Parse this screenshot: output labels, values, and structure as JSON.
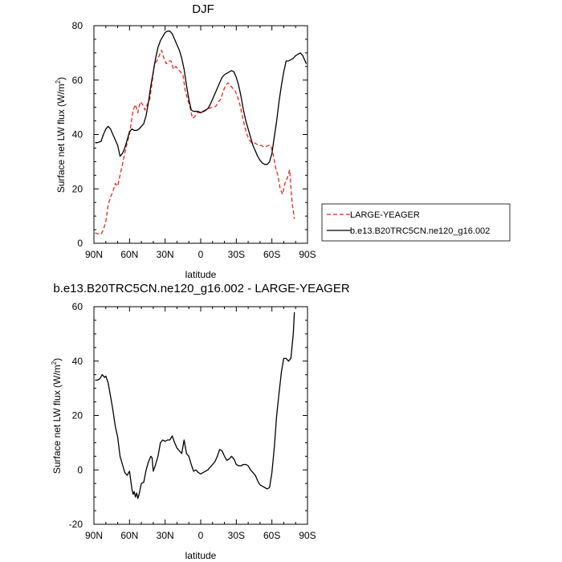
{
  "chart_data": [
    {
      "type": "line",
      "title": "DJF",
      "xlabel": "latitude",
      "ylabel": "Surface net LW flux (W/m",
      "ylabel_sup": "2",
      "ylabel_close": ")",
      "xlim": [
        90,
        -90
      ],
      "ylim": [
        0,
        80
      ],
      "x_ticks": [
        90,
        60,
        30,
        0,
        -30,
        -60,
        -90
      ],
      "x_tick_labels": [
        "90N",
        "60N",
        "30N",
        "0",
        "30S",
        "60S",
        "90S"
      ],
      "y_ticks": [
        0,
        20,
        40,
        60,
        80
      ],
      "y_tick_labels": [
        "0",
        "20",
        "40",
        "60",
        "80"
      ],
      "legend_position": "right",
      "series": [
        {
          "name": "LARGE-YEAGER",
          "color": "#e8241a",
          "style": "dashed",
          "x": [
            89,
            87,
            84,
            82,
            80,
            78,
            76,
            74,
            72,
            70,
            68,
            66,
            64,
            62,
            60,
            58,
            57,
            55,
            53,
            51,
            49,
            47,
            45,
            43,
            41,
            39,
            37,
            35,
            33,
            31,
            29,
            27,
            25,
            23,
            21,
            19,
            17,
            15,
            13,
            11,
            9,
            7,
            5,
            3,
            1,
            -1,
            -3,
            -5,
            -7,
            -9,
            -11,
            -13,
            -15,
            -17,
            -19,
            -21,
            -23,
            -25,
            -27,
            -29,
            -31,
            -33,
            -35,
            -37,
            -39,
            -41,
            -43,
            -45,
            -47,
            -49,
            -51,
            -53,
            -55,
            -57,
            -59,
            -61,
            -63,
            -65,
            -67,
            -69,
            -71,
            -73,
            -75,
            -77,
            -79
          ],
          "y": [
            3.8,
            3.5,
            3.3,
            5,
            8,
            14,
            17,
            19,
            22,
            21,
            25,
            29,
            33,
            37,
            40,
            46,
            49,
            51,
            48,
            52,
            51,
            49,
            51,
            53,
            59,
            66,
            67,
            69,
            71,
            68,
            66,
            67,
            67,
            64,
            65,
            64,
            63,
            62,
            56,
            53,
            50,
            46,
            46.5,
            48,
            48,
            48,
            48.5,
            49,
            49.5,
            50,
            50,
            50.5,
            52,
            53,
            56,
            58,
            59,
            58,
            57,
            56,
            54,
            51,
            47,
            43,
            40,
            38,
            37,
            37,
            36.5,
            36,
            36,
            35.5,
            35.5,
            36,
            36,
            33,
            28,
            25,
            20,
            18,
            22,
            24,
            27,
            15,
            9
          ]
        },
        {
          "name": "b.e13.B20TRC5CN.ne120_g16.002",
          "color": "#000000",
          "style": "solid",
          "x": [
            89,
            87,
            84,
            82,
            80,
            78,
            76,
            74,
            72,
            70,
            68,
            66,
            64,
            62,
            60,
            58,
            56,
            54,
            52,
            50,
            48,
            46,
            44,
            42,
            40,
            38,
            36,
            34,
            32,
            30,
            28,
            26,
            24,
            22,
            20,
            18,
            16,
            14,
            12,
            10,
            8,
            6,
            4,
            2,
            0,
            -2,
            -4,
            -6,
            -8,
            -10,
            -12,
            -14,
            -16,
            -18,
            -20,
            -22,
            -24,
            -26,
            -28,
            -30,
            -32,
            -34,
            -36,
            -38,
            -40,
            -42,
            -44,
            -46,
            -48,
            -50,
            -52,
            -54,
            -56,
            -58,
            -60,
            -62,
            -64,
            -66,
            -68,
            -70,
            -72,
            -74,
            -76,
            -78,
            -80,
            -82,
            -84,
            -86,
            -88,
            -89
          ],
          "y": [
            37,
            37,
            37.5,
            40,
            42,
            43,
            42,
            40,
            38,
            36,
            32,
            33,
            35,
            38,
            41,
            42,
            41.5,
            41.5,
            42,
            43,
            44,
            47,
            52,
            58,
            63,
            68,
            72,
            74.5,
            76,
            77.5,
            78,
            78,
            77,
            75,
            73,
            71,
            68,
            64,
            58,
            53,
            49,
            48.5,
            48.5,
            48.5,
            48,
            48.5,
            49,
            49.5,
            51,
            53,
            55,
            57,
            59,
            61,
            62,
            62.5,
            63,
            63.5,
            63,
            61,
            58,
            54,
            49,
            45,
            42,
            39,
            36,
            34,
            32,
            30.5,
            29.5,
            29,
            29,
            30,
            33,
            39,
            45,
            52,
            58,
            63,
            67,
            67,
            67.5,
            68,
            69,
            69.5,
            70,
            69,
            67,
            66
          ]
        }
      ]
    },
    {
      "type": "line",
      "title": "b.e13.B20TRC5CN.ne120_g16.002 - LARGE-YEAGER",
      "xlabel": "latitude",
      "ylabel": "Surface net LW flux (W/m",
      "ylabel_sup": "2",
      "ylabel_close": ")",
      "xlim": [
        90,
        -90
      ],
      "ylim": [
        -20,
        60
      ],
      "x_ticks": [
        90,
        60,
        30,
        0,
        -30,
        -60,
        -90
      ],
      "x_tick_labels": [
        "90N",
        "60N",
        "30N",
        "0",
        "30S",
        "60S",
        "90S"
      ],
      "y_ticks": [
        -20,
        0,
        20,
        40,
        60
      ],
      "y_tick_labels": [
        "-20",
        "0",
        "20",
        "40",
        "60"
      ],
      "series": [
        {
          "color": "#000000",
          "style": "solid",
          "x": [
            89,
            87,
            85,
            83,
            81,
            80,
            78,
            76,
            74,
            72,
            70,
            68,
            66,
            64,
            62,
            60,
            58,
            57,
            56,
            55,
            54,
            53,
            52,
            50,
            48,
            46,
            44,
            42,
            41,
            40,
            38,
            36,
            34,
            32,
            30,
            28,
            26,
            24,
            22,
            20,
            18,
            16,
            14,
            12,
            10,
            8,
            6,
            4,
            2,
            0,
            -2,
            -4,
            -6,
            -8,
            -10,
            -12,
            -14,
            -16,
            -18,
            -20,
            -22,
            -24,
            -26,
            -28,
            -30,
            -32,
            -34,
            -36,
            -38,
            -40,
            -42,
            -44,
            -46,
            -48,
            -50,
            -52,
            -54,
            -56,
            -58,
            -60,
            -62,
            -64,
            -66,
            -68,
            -70,
            -72,
            -74,
            -76,
            -78,
            -79
          ],
          "y": [
            33,
            33,
            33.5,
            35,
            34,
            34.5,
            32,
            27,
            22,
            16,
            12,
            5,
            2,
            -1,
            -2,
            -0.5,
            -7,
            -9,
            -8,
            -10,
            -8.5,
            -10.5,
            -9,
            -5,
            -4.5,
            0,
            3,
            5,
            4.5,
            -0.5,
            2,
            5,
            10,
            11,
            10.5,
            11,
            11,
            12.5,
            10,
            8,
            7,
            6,
            11,
            6,
            5,
            2,
            -0.5,
            0,
            -1,
            -1.5,
            -1,
            -0.5,
            0,
            1,
            2,
            3,
            5,
            7.5,
            7,
            5,
            3.5,
            4,
            5,
            4,
            2,
            1.5,
            1.5,
            2,
            2,
            1.5,
            0,
            -1,
            -2,
            -4,
            -5.5,
            -6,
            -6.5,
            -7,
            -6.5,
            -1,
            8,
            20,
            28,
            36,
            41,
            41,
            40,
            41,
            50,
            58
          ]
        }
      ]
    }
  ]
}
